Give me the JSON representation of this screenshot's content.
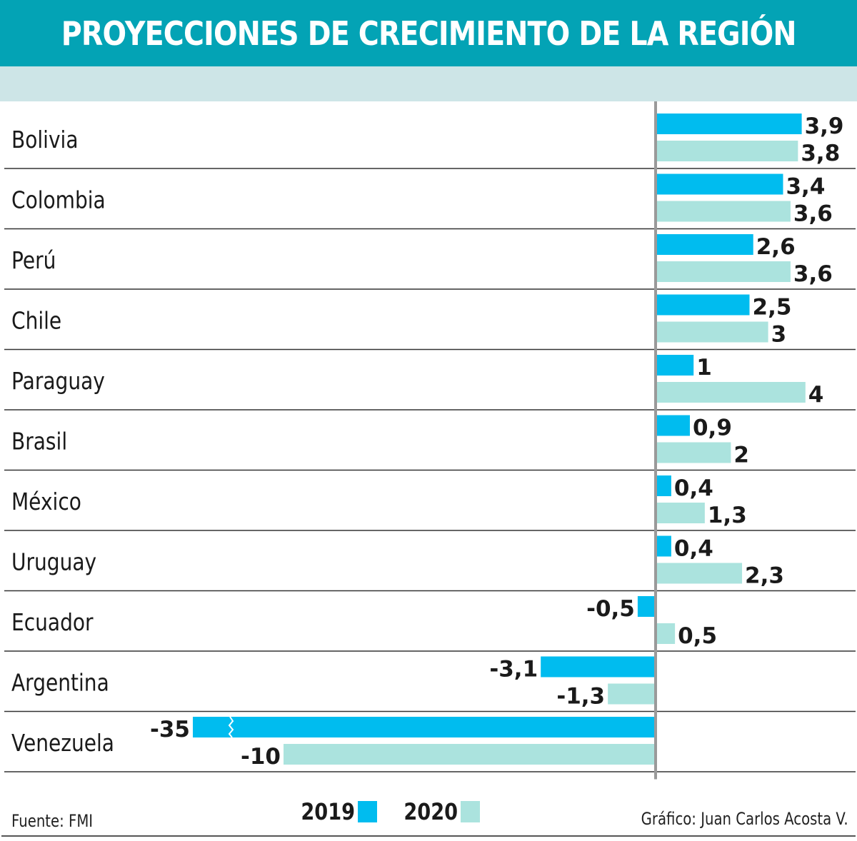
{
  "header": {
    "title": "PROYECCIONES DE CRECIMIENTO DE LA REGIÓN"
  },
  "colors": {
    "title_bg": "#03a3b5",
    "band_bg": "#cde5e7",
    "series_2019": "#00bcef",
    "series_2020": "#abe3de",
    "axis": "#9a9a9a",
    "rule": "#333333"
  },
  "chart_data": {
    "type": "bar",
    "orientation": "horizontal",
    "title": "PROYECCIONES DE CRECIMIENTO DE LA REGIÓN",
    "xlabel": "",
    "ylabel": "",
    "categories": [
      "Bolivia",
      "Colombia",
      "Perú",
      "Chile",
      "Paraguay",
      "Brasil",
      "México",
      "Uruguay",
      "Ecuador",
      "Argentina",
      "Venezuela"
    ],
    "series": [
      {
        "name": "2019",
        "values": [
          3.9,
          3.4,
          2.6,
          2.5,
          1,
          0.9,
          0.4,
          0.4,
          -0.5,
          -3.1,
          -35
        ],
        "labels": [
          "3,9",
          "3,4",
          "2,6",
          "2,5",
          "1",
          "0,9",
          "0,4",
          "0,4",
          "-0,5",
          "-3,1",
          "-35"
        ]
      },
      {
        "name": "2020",
        "values": [
          3.8,
          3.6,
          3.6,
          3,
          4,
          2,
          1.3,
          2.3,
          0.5,
          -1.3,
          -10
        ],
        "labels": [
          "3,8",
          "3,6",
          "3,6",
          "3",
          "4",
          "2",
          "1,3",
          "2,3",
          "0,5",
          "-1,3",
          "-10"
        ]
      }
    ],
    "axis_break": {
      "category": "Venezuela",
      "series": "2019",
      "note": "bar truncated with break mark"
    },
    "legend": {
      "placement": "bottom-center",
      "entries": [
        "2019",
        "2020"
      ]
    },
    "grid": false
  },
  "footer": {
    "source": "Fuente: FMI",
    "credit": "Gráfico: Juan Carlos Acosta V."
  }
}
